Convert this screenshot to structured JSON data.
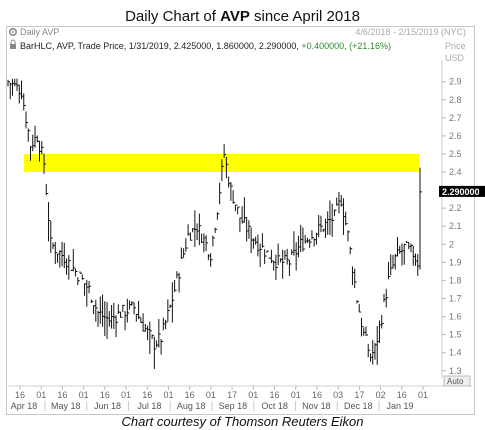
{
  "title": {
    "prefix": "Daily Chart of ",
    "ticker": "AVP",
    "suffix": " since April 2018"
  },
  "chart_header": {
    "symbol_label": "Daily AVP",
    "date_range": "4/6/2018 - 2/15/2019 (NYC)",
    "info_line": "BarHLC, AVP, Trade Price, 1/31/2019, 2.425000, 1.860000, 2.290000, ",
    "change": "+0.400000, (+21.16%)",
    "price_label": "Price",
    "currency": "USD",
    "last_price": "2.290000",
    "auto_label": "Auto"
  },
  "caption": "Chart courtesy of Thomson Reuters Eikon",
  "colors": {
    "highlight": "#ffff00",
    "bars": "#111111",
    "change": "#2e8b2e",
    "price_tag_bg": "#000000",
    "price_tag_fg": "#ffffff"
  },
  "chart_data": {
    "type": "bar",
    "bar_style": "HLC",
    "ylim": [
      1.26,
      3.02
    ],
    "yticks": [
      "2.9",
      "2.8",
      "2.7",
      "2.6",
      "2.5",
      "2.4",
      "2.3",
      "2.2",
      "2.1",
      "2",
      "1.9",
      "1.8",
      "1.7",
      "1.6",
      "1.5",
      "1.4",
      "1.3"
    ],
    "day_labels": [
      "16",
      "01",
      "16",
      "01",
      "16",
      "01",
      "16",
      "01",
      "16",
      "01",
      "17",
      "01",
      "16",
      "01",
      "16",
      "03",
      "17",
      "02",
      "16",
      "01"
    ],
    "month_labels": [
      "Apr 18",
      "May 18",
      "Jun 18",
      "Jul 18",
      "Aug 18",
      "Sep 18",
      "Oct 18",
      "Nov 18",
      "Dec 18",
      "Jan 19"
    ],
    "highlight_band": [
      2.4,
      2.5
    ],
    "last_value": 2.29,
    "keypoints": [
      [
        0,
        2.9
      ],
      [
        6,
        2.85
      ],
      [
        10,
        2.55
      ],
      [
        13,
        2.6
      ],
      [
        16,
        2.45
      ],
      [
        19,
        2.0
      ],
      [
        25,
        1.93
      ],
      [
        30,
        1.85
      ],
      [
        36,
        1.75
      ],
      [
        40,
        1.62
      ],
      [
        45,
        1.58
      ],
      [
        50,
        1.62
      ],
      [
        56,
        1.65
      ],
      [
        60,
        1.55
      ],
      [
        65,
        1.45
      ],
      [
        68,
        1.48
      ],
      [
        72,
        1.65
      ],
      [
        76,
        1.85
      ],
      [
        80,
        2.05
      ],
      [
        84,
        2.1
      ],
      [
        88,
        2.0
      ],
      [
        90,
        1.95
      ],
      [
        93,
        2.2
      ],
      [
        96,
        2.5
      ],
      [
        99,
        2.3
      ],
      [
        103,
        2.15
      ],
      [
        108,
        2.05
      ],
      [
        115,
        1.95
      ],
      [
        120,
        1.9
      ],
      [
        125,
        1.9
      ],
      [
        130,
        2.0
      ],
      [
        135,
        2.05
      ],
      [
        140,
        2.1
      ],
      [
        145,
        2.15
      ],
      [
        148,
        2.25
      ],
      [
        151,
        2.05
      ],
      [
        155,
        1.7
      ],
      [
        158,
        1.5
      ],
      [
        161,
        1.38
      ],
      [
        163,
        1.42
      ],
      [
        166,
        1.6
      ],
      [
        169,
        1.8
      ],
      [
        172,
        1.92
      ],
      [
        176,
        1.98
      ],
      [
        180,
        1.95
      ],
      [
        182,
        1.9
      ],
      [
        183,
        2.29
      ]
    ]
  }
}
